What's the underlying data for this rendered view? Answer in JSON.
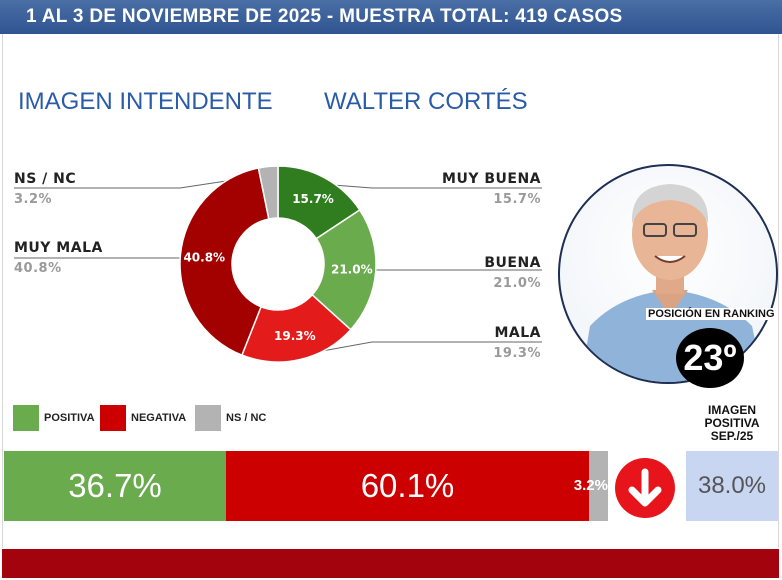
{
  "header": {
    "title": "1 AL 3 DE NOVIEMBRE DE 2025 - MUESTRA TOTAL: 419 CASOS"
  },
  "title": {
    "left": "IMAGEN INTENDENTE",
    "right": "WALTER CORTÉS"
  },
  "colors": {
    "muy_buena": "#2f7d1e",
    "buena": "#6aab4e",
    "mala": "#e31b1b",
    "muy_mala": "#a30000",
    "ns_nc": "#b3b3b3",
    "header": "#2f5491",
    "footer": "#a3030c",
    "title": "#2a5ba8"
  },
  "chart_data": [
    {
      "type": "pie",
      "categories": [
        "MUY BUENA",
        "BUENA",
        "MALA",
        "MUY MALA",
        "NS / NC"
      ],
      "values": [
        15.7,
        21.0,
        19.3,
        40.8,
        3.2
      ],
      "labels": [
        "15.7%",
        "21.0%",
        "19.3%",
        "40.8%",
        "3.2%"
      ],
      "donut": true
    },
    {
      "type": "bar",
      "stacked": true,
      "orientation": "horizontal",
      "categories": [
        "POSITIVA",
        "NEGATIVA",
        "NS / NC"
      ],
      "values": [
        36.7,
        60.1,
        3.2
      ],
      "labels": [
        "36.7%",
        "60.1%",
        "3.2%"
      ],
      "legend": [
        "POSITIVA",
        "NEGATIVA",
        "NS / NC"
      ]
    }
  ],
  "ranking": {
    "label": "POSICIÓN EN RANKING",
    "value": "23º"
  },
  "previous": {
    "label_lines": [
      "IMAGEN",
      "POSITIVA",
      "SEP./25"
    ],
    "value": "38.0%"
  },
  "trend": {
    "direction": "down",
    "icon": "arrow-down-icon"
  }
}
